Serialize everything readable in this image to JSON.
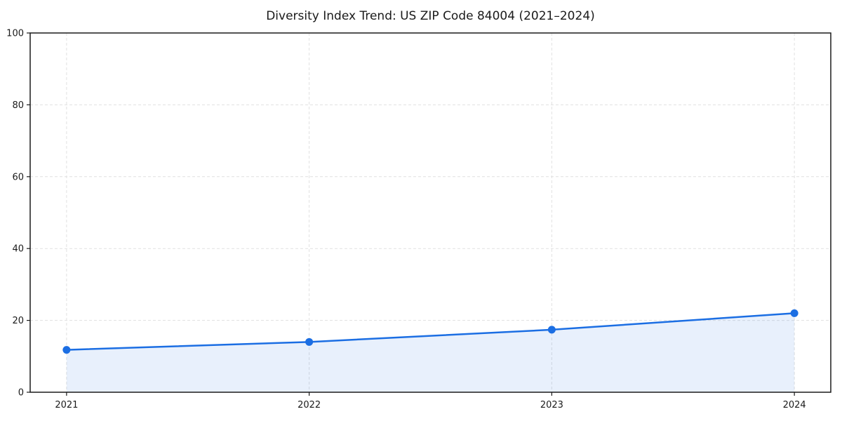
{
  "page": {
    "background": "#ffffff"
  },
  "chart_data": {
    "type": "line",
    "title": "Diversity Index Trend: US ZIP Code 84004 (2021–2024)",
    "x": [
      2021,
      2022,
      2023,
      2024
    ],
    "xtick_labels": [
      "2021",
      "2022",
      "2023",
      "2024"
    ],
    "series": [
      {
        "name": "Diversity Index",
        "values": [
          11.8,
          14.0,
          17.4,
          22.0
        ]
      }
    ],
    "xlabel": "",
    "ylabel": "",
    "xlim": [
      2020.85,
      2024.15
    ],
    "ylim": [
      0,
      100
    ],
    "yticks": [
      0,
      20,
      40,
      60,
      80,
      100
    ],
    "grid": true,
    "grid_style": "dashed",
    "legend_position": "none",
    "area_fill_to": 0,
    "line_color": "#1b6ee3",
    "marker_color": "#1b6ee3",
    "fill_color": "rgba(27, 110, 227, 0.10)",
    "grid_color": "#e1e1e1",
    "axis_color": "#1a1a1a",
    "text_color": "#1a1a1a"
  }
}
